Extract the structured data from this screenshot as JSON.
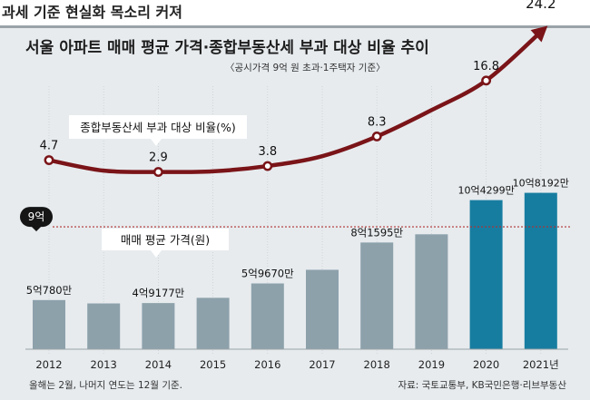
{
  "headline": "과세 기준 현실화 목소리 커져",
  "chart_data": {
    "type": "bar",
    "title": "서울 아파트 매매 평균 가격·종합부동산세 부과 대상 비율 추이",
    "subtitle": "〈공시가격 9억 원 초과·1주택자 기준〉",
    "categories": [
      "2012",
      "2013",
      "2014",
      "2015",
      "2016",
      "2017",
      "2018",
      "2019",
      "2020",
      "2021년"
    ],
    "series": [
      {
        "name": "매매 평균 가격(원)",
        "type": "bar",
        "values": [
          5.08,
          4.9,
          4.92,
          5.2,
          5.97,
          6.7,
          8.16,
          8.6,
          10.43,
          10.82
        ],
        "labels": [
          "5억780만",
          "",
          "4억9177만",
          "",
          "5억9670만",
          "",
          "8억1595만",
          "",
          "10억4299만",
          "10억8192만"
        ],
        "colors": [
          "#8da1ab",
          "#8da1ab",
          "#8da1ab",
          "#8da1ab",
          "#8da1ab",
          "#8da1ab",
          "#8da1ab",
          "#8da1ab",
          "#177da0",
          "#177da0"
        ]
      },
      {
        "name": "종합부동산세 부과 대상 비율(%)",
        "type": "line",
        "values": [
          4.7,
          3.1,
          2.9,
          3.0,
          3.8,
          5.3,
          8.3,
          12.3,
          16.8,
          24.2
        ],
        "labels": [
          "4.7",
          "",
          "2.9",
          "",
          "3.8",
          "",
          "8.3",
          "",
          "16.8",
          "24.2"
        ],
        "color": "#7a1418"
      }
    ],
    "reference_line": {
      "value": 9,
      "label": "9억",
      "color": "#b03030"
    },
    "legend": [
      "종합부동산세 부과 대상 비율(%)",
      "매매 평균 가격(원)"
    ],
    "footnote": "올해는 2월, 나머지 연도는 12월 기준.",
    "source": "자료: 국토교통부, KB국민은행·리브부동산"
  }
}
